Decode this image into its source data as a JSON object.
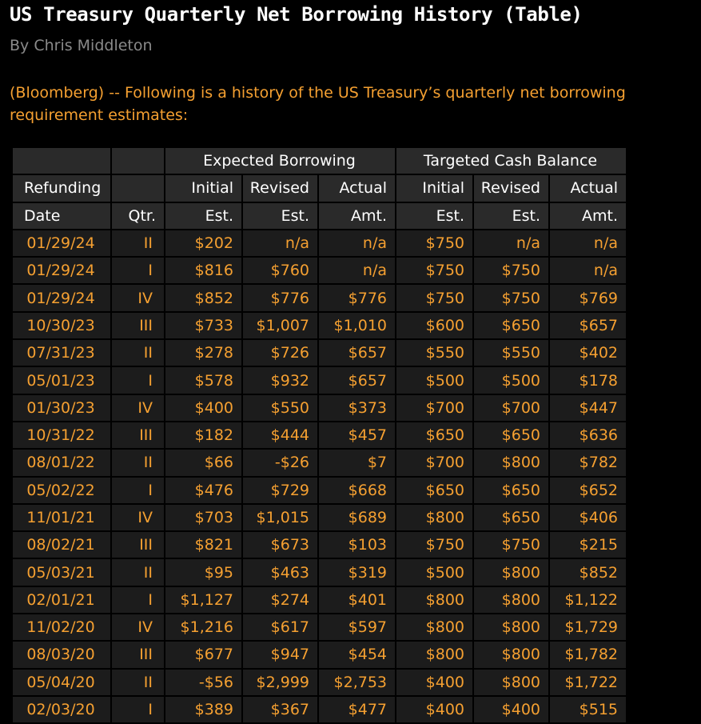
{
  "article": {
    "headline": "US Treasury Quarterly Net Borrowing History (Table)",
    "byline": "By Chris Middleton",
    "lead": "(Bloomberg) --  Following is a history of the US Treasury’s quarterly net borrowing requirement estimates:"
  },
  "colors": {
    "background": "#000000",
    "accent_orange": "#f5a031",
    "header_cell": "#2a2a2a",
    "body_cell": "#1c1c1c",
    "byline_gray": "#8a8a8a"
  },
  "table": {
    "group_headers": {
      "expected": "Expected Borrowing",
      "targeted": "Targeted Cash Balance"
    },
    "header_row2": {
      "refunding": "Refunding",
      "exp_initial": "Initial",
      "exp_revised": "Revised",
      "exp_actual": "Actual",
      "tgt_initial": "Initial",
      "tgt_revised": "Revised",
      "tgt_actual": "Actual"
    },
    "header_row3": {
      "date": "Date",
      "qtr": "Qtr.",
      "exp_initial": "Est.",
      "exp_revised": "Est.",
      "exp_actual": "Amt.",
      "tgt_initial": "Est.",
      "tgt_revised": "Est.",
      "tgt_actual": "Amt."
    },
    "rows": [
      [
        "01/29/24",
        "II",
        "$202",
        "n/a",
        "n/a",
        "$750",
        "n/a",
        "n/a"
      ],
      [
        "01/29/24",
        "I",
        "$816",
        "$760",
        "n/a",
        "$750",
        "$750",
        "n/a"
      ],
      [
        "01/29/24",
        "IV",
        "$852",
        "$776",
        "$776",
        "$750",
        "$750",
        "$769"
      ],
      [
        "10/30/23",
        "III",
        "$733",
        "$1,007",
        "$1,010",
        "$600",
        "$650",
        "$657"
      ],
      [
        "07/31/23",
        "II",
        "$278",
        "$726",
        "$657",
        "$550",
        "$550",
        "$402"
      ],
      [
        "05/01/23",
        "I",
        "$578",
        "$932",
        "$657",
        "$500",
        "$500",
        "$178"
      ],
      [
        "01/30/23",
        "IV",
        "$400",
        "$550",
        "$373",
        "$700",
        "$700",
        "$447"
      ],
      [
        "10/31/22",
        "III",
        "$182",
        "$444",
        "$457",
        "$650",
        "$650",
        "$636"
      ],
      [
        "08/01/22",
        "II",
        "$66",
        "-$26",
        "$7",
        "$700",
        "$800",
        "$782"
      ],
      [
        "05/02/22",
        "I",
        "$476",
        "$729",
        "$668",
        "$650",
        "$650",
        "$652"
      ],
      [
        "11/01/21",
        "IV",
        "$703",
        "$1,015",
        "$689",
        "$800",
        "$650",
        "$406"
      ],
      [
        "08/02/21",
        "III",
        "$821",
        "$673",
        "$103",
        "$750",
        "$750",
        "$215"
      ],
      [
        "05/03/21",
        "II",
        "$95",
        "$463",
        "$319",
        "$500",
        "$800",
        "$852"
      ],
      [
        "02/01/21",
        "I",
        "$1,127",
        "$274",
        "$401",
        "$800",
        "$800",
        "$1,122"
      ],
      [
        "11/02/20",
        "IV",
        "$1,216",
        "$617",
        "$597",
        "$800",
        "$800",
        "$1,729"
      ],
      [
        "08/03/20",
        "III",
        "$677",
        "$947",
        "$454",
        "$800",
        "$800",
        "$1,782"
      ],
      [
        "05/04/20",
        "II",
        "-$56",
        "$2,999",
        "$2,753",
        "$400",
        "$800",
        "$1,722"
      ],
      [
        "02/03/20",
        "I",
        "$389",
        "$367",
        "$477",
        "$400",
        "$400",
        "$515"
      ]
    ]
  }
}
